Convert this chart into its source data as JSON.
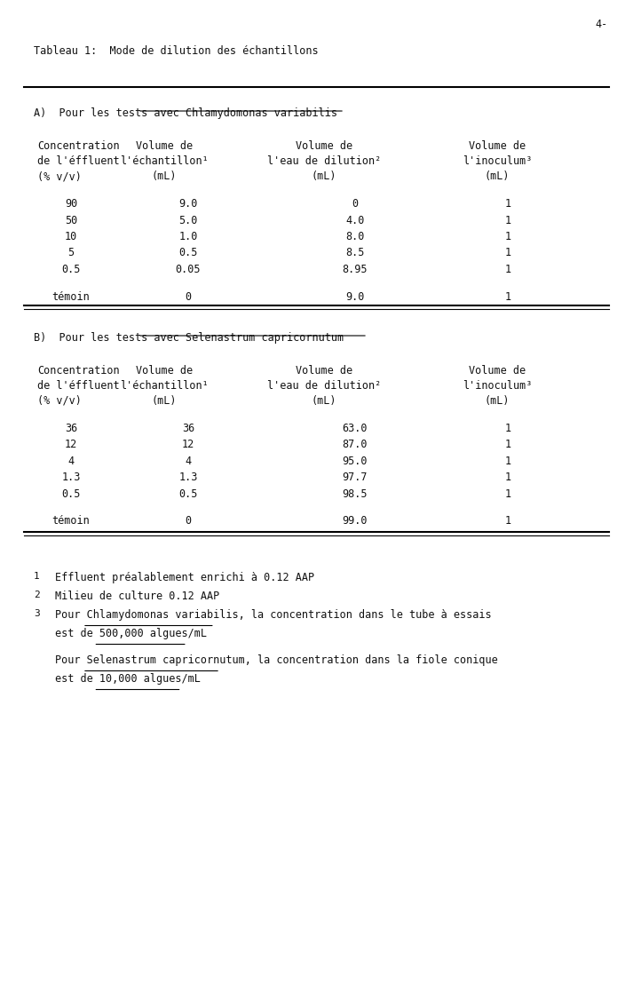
{
  "page_num": "4-",
  "main_title": "Tableau 1:  Mode de dilution des échantillons",
  "section_a_title": "A)  Pour les tests avec Chlamydomonas variabilis",
  "section_b_title": "B)  Pour les tests avec Selenastrum capricornutum",
  "col_headers": [
    [
      "Concentration",
      "de l'éffluent",
      "(% v/v)"
    ],
    [
      "Volume de",
      "l'échantillon¹",
      "(mL)"
    ],
    [
      "Volume de",
      "l'eau de dilution²",
      "(mL)"
    ],
    [
      "Volume de",
      "l'inoculum³",
      "(mL)"
    ]
  ],
  "table_a_rows": [
    [
      "90",
      "9.0",
      "0",
      "1"
    ],
    [
      "50",
      "5.0",
      "4.0",
      "1"
    ],
    [
      "10",
      "1.0",
      "8.0",
      "1"
    ],
    [
      "5",
      "0.5",
      "8.5",
      "1"
    ],
    [
      "0.5",
      "0.05",
      "8.95",
      "1"
    ],
    [
      "témoin",
      "0",
      "9.0",
      "1"
    ]
  ],
  "table_b_rows": [
    [
      "36",
      "36",
      "63.0",
      "1"
    ],
    [
      "12",
      "12",
      "87.0",
      "1"
    ],
    [
      "4",
      "4",
      "95.0",
      "1"
    ],
    [
      "1.3",
      "1.3",
      "97.7",
      "1"
    ],
    [
      "0.5",
      "0.5",
      "98.5",
      "1"
    ],
    [
      "témoin",
      "0",
      "99.0",
      "1"
    ]
  ],
  "footnotes": [
    "Effluent préalablement enrichi à 0.12 AAP",
    "Milieu de culture 0.12 AAP",
    "Pour Chlamydomonas variabilis, la concentration dans le tube à essais\n    est de 500,000 algues/mL",
    "Pour Selenastrum capricornutum, la concentration dans la fiole conique\n    est de 10,000 algues/mL"
  ],
  "footnote_underline": [
    "Chlamydomonas variabilis",
    "Selenastrum capricornutum"
  ],
  "bg_color": "#f5f5f5",
  "text_color": "#111111",
  "font_size": 8.5,
  "mono_font": "DejaVu Sans Mono"
}
